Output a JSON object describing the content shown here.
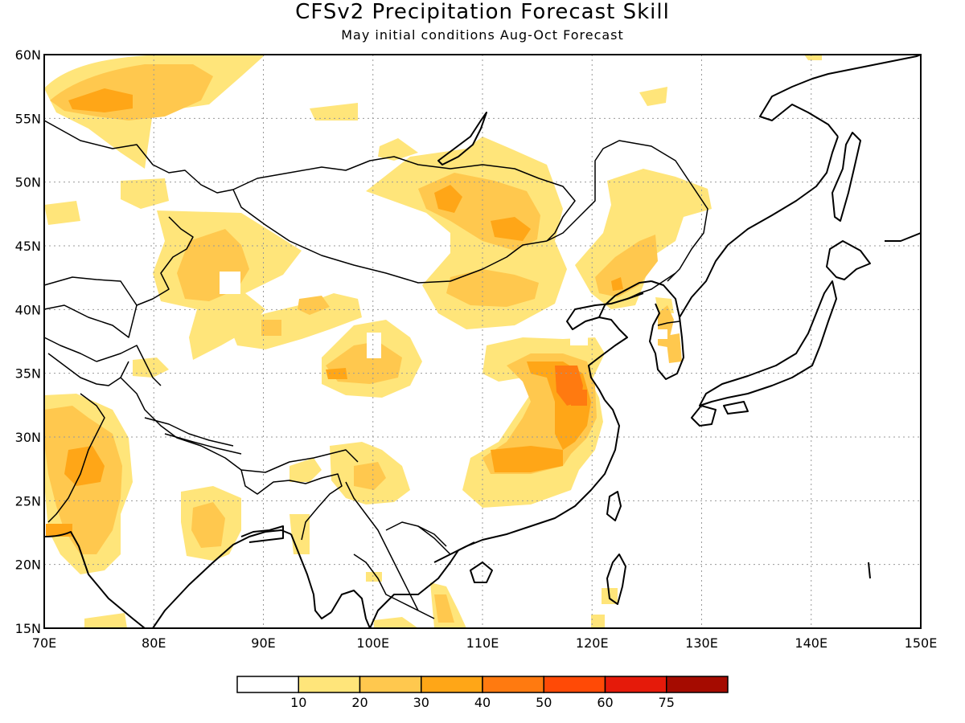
{
  "title": "CFSv2 Precipitation Forecast Skill",
  "subtitle": "May initial conditions  Aug-Oct Forecast",
  "map": {
    "lon_range": [
      70,
      150
    ],
    "lat_range": [
      15,
      60
    ],
    "x_ticks": [
      "70E",
      "80E",
      "90E",
      "100E",
      "110E",
      "120E",
      "130E",
      "140E",
      "150E"
    ],
    "y_ticks": [
      "15N",
      "20N",
      "25N",
      "30N",
      "35N",
      "40N",
      "45N",
      "50N",
      "55N",
      "60N"
    ],
    "grid": true
  },
  "colorbar": {
    "labels": [
      "10",
      "20",
      "30",
      "40",
      "50",
      "60",
      "75"
    ],
    "colors": [
      "#ffffff",
      "#ffe57a",
      "#ffc84e",
      "#ffa617",
      "#ff7a10",
      "#ff4a06",
      "#e51a0a",
      "#a50b00"
    ]
  },
  "colors": {
    "light": "#ffe57a",
    "medium": "#ffc84e",
    "strong": "#ffa617",
    "very_strong": "#ff7a10"
  }
}
